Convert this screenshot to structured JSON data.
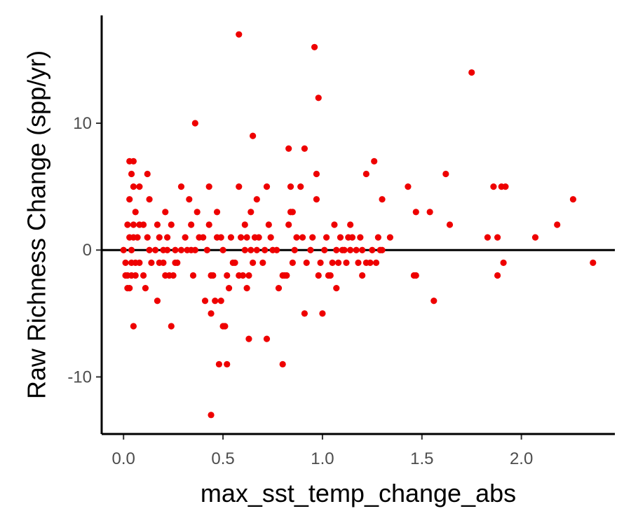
{
  "chart_data": {
    "type": "scatter",
    "title": "",
    "xlabel": "max_sst_temp_change_abs",
    "ylabel": "Raw Richness Change (spp/yr)",
    "xlim": [
      -0.11,
      2.47
    ],
    "ylim": [
      -14.5,
      18.5
    ],
    "xticks": [
      0.0,
      0.5,
      1.0,
      1.5,
      2.0
    ],
    "xtick_labels": [
      "0.0",
      "0.5",
      "1.0",
      "1.5",
      "2.0"
    ],
    "yticks": [
      -10,
      0,
      10
    ],
    "ytick_labels": [
      "-10",
      "0",
      "10"
    ],
    "reference_line": {
      "y": 0
    },
    "grid": false,
    "legend": "none",
    "colors": {
      "points": "#ee0000",
      "axes": "#000000",
      "ticks": "#4d4d4d"
    },
    "series": [
      {
        "points": [
          [
            0.0,
            0
          ],
          [
            0.01,
            -1
          ],
          [
            0.01,
            -2
          ],
          [
            0.02,
            2
          ],
          [
            0.02,
            -2
          ],
          [
            0.02,
            -3
          ],
          [
            0.03,
            7
          ],
          [
            0.03,
            4
          ],
          [
            0.03,
            1
          ],
          [
            0.03,
            -3
          ],
          [
            0.04,
            6
          ],
          [
            0.04,
            0
          ],
          [
            0.04,
            -1
          ],
          [
            0.04,
            -2
          ],
          [
            0.05,
            7
          ],
          [
            0.05,
            5
          ],
          [
            0.05,
            2
          ],
          [
            0.05,
            1
          ],
          [
            0.05,
            -6
          ],
          [
            0.06,
            3
          ],
          [
            0.06,
            -1
          ],
          [
            0.06,
            -2
          ],
          [
            0.07,
            1
          ],
          [
            0.08,
            5
          ],
          [
            0.08,
            2
          ],
          [
            0.08,
            -1
          ],
          [
            0.1,
            2
          ],
          [
            0.1,
            -2
          ],
          [
            0.11,
            -3
          ],
          [
            0.12,
            6
          ],
          [
            0.12,
            1
          ],
          [
            0.13,
            4
          ],
          [
            0.13,
            0
          ],
          [
            0.14,
            -1
          ],
          [
            0.16,
            0
          ],
          [
            0.17,
            2
          ],
          [
            0.17,
            -4
          ],
          [
            0.18,
            1
          ],
          [
            0.18,
            -1
          ],
          [
            0.2,
            0
          ],
          [
            0.2,
            -1
          ],
          [
            0.21,
            3
          ],
          [
            0.21,
            -2
          ],
          [
            0.22,
            1
          ],
          [
            0.22,
            0
          ],
          [
            0.23,
            -2
          ],
          [
            0.24,
            2
          ],
          [
            0.24,
            -6
          ],
          [
            0.25,
            -2
          ],
          [
            0.26,
            0
          ],
          [
            0.26,
            -1
          ],
          [
            0.27,
            -1
          ],
          [
            0.29,
            5
          ],
          [
            0.29,
            0
          ],
          [
            0.31,
            1
          ],
          [
            0.32,
            0
          ],
          [
            0.33,
            4
          ],
          [
            0.34,
            2
          ],
          [
            0.34,
            0
          ],
          [
            0.35,
            -2
          ],
          [
            0.36,
            0
          ],
          [
            0.36,
            10
          ],
          [
            0.37,
            3
          ],
          [
            0.38,
            1
          ],
          [
            0.4,
            1
          ],
          [
            0.41,
            -4
          ],
          [
            0.42,
            0
          ],
          [
            0.43,
            5
          ],
          [
            0.43,
            2
          ],
          [
            0.44,
            -2
          ],
          [
            0.44,
            -5
          ],
          [
            0.44,
            -13
          ],
          [
            0.45,
            -2
          ],
          [
            0.46,
            -4
          ],
          [
            0.47,
            3
          ],
          [
            0.47,
            1
          ],
          [
            0.48,
            -9
          ],
          [
            0.49,
            -4
          ],
          [
            0.49,
            1
          ],
          [
            0.5,
            0
          ],
          [
            0.5,
            -6
          ],
          [
            0.51,
            -6
          ],
          [
            0.52,
            -2
          ],
          [
            0.52,
            -9
          ],
          [
            0.53,
            -3
          ],
          [
            0.54,
            1
          ],
          [
            0.55,
            -1
          ],
          [
            0.56,
            -1
          ],
          [
            0.58,
            -2
          ],
          [
            0.58,
            5
          ],
          [
            0.58,
            17
          ],
          [
            0.59,
            1
          ],
          [
            0.6,
            -2
          ],
          [
            0.61,
            2
          ],
          [
            0.61,
            0
          ],
          [
            0.62,
            1
          ],
          [
            0.62,
            -3
          ],
          [
            0.63,
            -7
          ],
          [
            0.63,
            -2
          ],
          [
            0.64,
            0
          ],
          [
            0.64,
            3
          ],
          [
            0.65,
            9
          ],
          [
            0.65,
            -1
          ],
          [
            0.66,
            1
          ],
          [
            0.67,
            4
          ],
          [
            0.67,
            0
          ],
          [
            0.68,
            1
          ],
          [
            0.7,
            -1
          ],
          [
            0.71,
            0
          ],
          [
            0.72,
            5
          ],
          [
            0.72,
            -7
          ],
          [
            0.73,
            2
          ],
          [
            0.74,
            1
          ],
          [
            0.75,
            0
          ],
          [
            0.77,
            0
          ],
          [
            0.78,
            -3
          ],
          [
            0.8,
            -9
          ],
          [
            0.8,
            -2
          ],
          [
            0.81,
            -2
          ],
          [
            0.82,
            -2
          ],
          [
            0.83,
            2
          ],
          [
            0.83,
            8
          ],
          [
            0.84,
            5
          ],
          [
            0.84,
            3
          ],
          [
            0.85,
            3
          ],
          [
            0.85,
            -1
          ],
          [
            0.86,
            0
          ],
          [
            0.87,
            1
          ],
          [
            0.89,
            5
          ],
          [
            0.9,
            1
          ],
          [
            0.91,
            8
          ],
          [
            0.91,
            -5
          ],
          [
            0.92,
            -1
          ],
          [
            0.94,
            0
          ],
          [
            0.95,
            1
          ],
          [
            0.96,
            16
          ],
          [
            0.97,
            6
          ],
          [
            0.97,
            4
          ],
          [
            0.98,
            12
          ],
          [
            0.98,
            -2
          ],
          [
            0.99,
            -1
          ],
          [
            1.0,
            -5
          ],
          [
            1.01,
            0
          ],
          [
            1.02,
            1
          ],
          [
            1.03,
            -2
          ],
          [
            1.04,
            -2
          ],
          [
            1.05,
            -1
          ],
          [
            1.06,
            2
          ],
          [
            1.07,
            0
          ],
          [
            1.07,
            -3
          ],
          [
            1.08,
            -1
          ],
          [
            1.09,
            1
          ],
          [
            1.1,
            0
          ],
          [
            1.11,
            0
          ],
          [
            1.12,
            -1
          ],
          [
            1.13,
            1
          ],
          [
            1.14,
            0
          ],
          [
            1.14,
            2
          ],
          [
            1.15,
            1
          ],
          [
            1.17,
            0
          ],
          [
            1.18,
            -1
          ],
          [
            1.19,
            1
          ],
          [
            1.2,
            -2
          ],
          [
            1.2,
            0
          ],
          [
            1.22,
            -1
          ],
          [
            1.22,
            6
          ],
          [
            1.24,
            -1
          ],
          [
            1.25,
            0
          ],
          [
            1.26,
            7
          ],
          [
            1.27,
            -1
          ],
          [
            1.28,
            1
          ],
          [
            1.29,
            0
          ],
          [
            1.3,
            0
          ],
          [
            1.3,
            4
          ],
          [
            1.34,
            1
          ],
          [
            1.43,
            5
          ],
          [
            1.46,
            -2
          ],
          [
            1.47,
            -2
          ],
          [
            1.47,
            3
          ],
          [
            1.54,
            3
          ],
          [
            1.56,
            -4
          ],
          [
            1.62,
            6
          ],
          [
            1.64,
            2
          ],
          [
            1.75,
            14
          ],
          [
            1.83,
            1
          ],
          [
            1.86,
            5
          ],
          [
            1.88,
            -2
          ],
          [
            1.88,
            1
          ],
          [
            1.9,
            5
          ],
          [
            1.91,
            -1
          ],
          [
            1.92,
            5
          ],
          [
            2.07,
            1
          ],
          [
            2.18,
            2
          ],
          [
            2.26,
            4
          ],
          [
            2.36,
            -1
          ]
        ]
      }
    ]
  }
}
